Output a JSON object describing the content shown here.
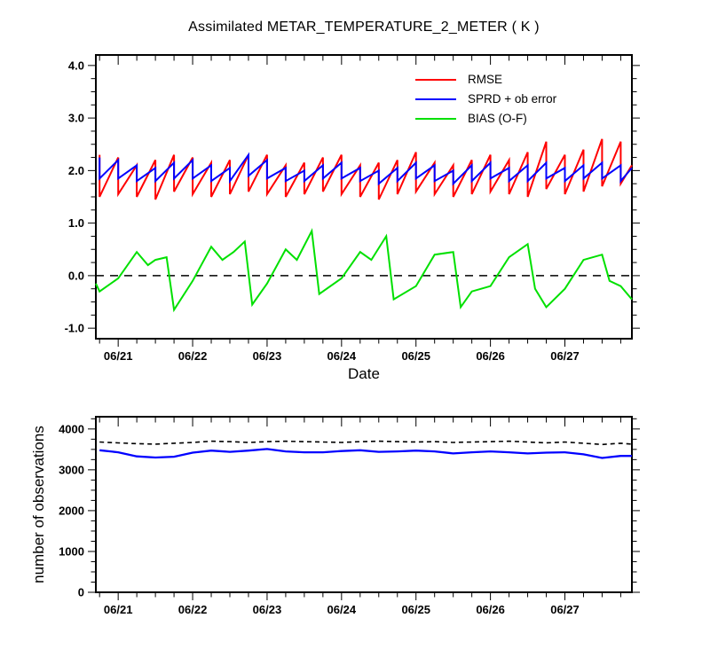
{
  "chart_data": [
    {
      "type": "line",
      "title": "Assimilated METAR_TEMPERATURE_2_METER ( K )",
      "xlabel": "Date",
      "ylabel": "",
      "xlim": [
        20.7,
        27.9
      ],
      "ylim": [
        -1.2,
        4.2
      ],
      "x_major_ticks": [
        21,
        22,
        23,
        24,
        25,
        26,
        27
      ],
      "x_tick_labels": [
        "06/21",
        "06/22",
        "06/23",
        "06/24",
        "06/25",
        "06/26",
        "06/27"
      ],
      "x_minor_step": 0.25,
      "y_major_ticks": [
        -1,
        0,
        1,
        2,
        3,
        4
      ],
      "y_tick_labels": [
        "-1.0",
        "0.0",
        "1.0",
        "2.0",
        "3.0",
        "4.0"
      ],
      "y_minor_step": 0.25,
      "grid": "off",
      "zero_line": {
        "y": 0,
        "style": "dashed",
        "color": "#000000"
      },
      "legend": {
        "position": "upper-right"
      },
      "series": [
        {
          "name": "RMSE",
          "id": "rmse",
          "color": "#ff0000",
          "style": "sawtooth",
          "width": 2,
          "times": [
            20.75,
            21,
            21.25,
            21.5,
            21.75,
            22,
            22.25,
            22.5,
            22.75,
            23,
            23.25,
            23.5,
            23.75,
            24,
            24.25,
            24.5,
            24.75,
            25,
            25.25,
            25.5,
            25.75,
            26,
            26.25,
            26.5,
            26.75,
            27,
            27.25,
            27.5,
            27.75,
            27.9
          ],
          "prior": [
            2.3,
            2.25,
            2.1,
            2.2,
            2.3,
            2.25,
            2.15,
            2.2,
            2.3,
            2.3,
            2.1,
            2.15,
            2.25,
            2.3,
            2.1,
            2.15,
            2.2,
            2.35,
            2.15,
            2.1,
            2.2,
            2.3,
            2.2,
            2.35,
            2.55,
            2.3,
            2.4,
            2.6,
            2.55,
            2.1
          ],
          "posterior": [
            1.5,
            1.55,
            1.5,
            1.45,
            1.6,
            1.55,
            1.5,
            1.55,
            1.6,
            1.55,
            1.5,
            1.55,
            1.6,
            1.55,
            1.5,
            1.45,
            1.55,
            1.6,
            1.55,
            1.5,
            1.55,
            1.6,
            1.55,
            1.5,
            1.65,
            1.55,
            1.6,
            1.7,
            1.75,
            2.1
          ]
        },
        {
          "name": "SPRD + ob error",
          "id": "sprd",
          "color": "#0000ff",
          "style": "sawtooth",
          "width": 2,
          "times": [
            20.75,
            21,
            21.25,
            21.5,
            21.75,
            22,
            22.25,
            22.5,
            22.75,
            23,
            23.25,
            23.5,
            23.75,
            24,
            24.25,
            24.5,
            24.75,
            25,
            25.25,
            25.5,
            25.75,
            26,
            26.25,
            26.5,
            26.75,
            27,
            27.25,
            27.5,
            27.75,
            27.9
          ],
          "prior": [
            2.25,
            2.2,
            2.1,
            2.05,
            2.15,
            2.2,
            2.1,
            2.05,
            2.3,
            2.2,
            2.05,
            2.0,
            2.1,
            2.15,
            2.05,
            2.0,
            2.05,
            2.15,
            2.1,
            2.0,
            2.1,
            2.15,
            2.05,
            2.1,
            2.15,
            2.05,
            2.1,
            2.15,
            2.1,
            2.05
          ],
          "posterior": [
            1.85,
            1.85,
            1.8,
            1.8,
            1.85,
            1.85,
            1.8,
            1.8,
            1.9,
            1.85,
            1.8,
            1.8,
            1.85,
            1.85,
            1.8,
            1.75,
            1.8,
            1.85,
            1.8,
            1.75,
            1.8,
            1.85,
            1.8,
            1.8,
            1.85,
            1.8,
            1.85,
            1.85,
            1.8,
            2.05
          ]
        },
        {
          "name": "BIAS (O-F)",
          "id": "bias",
          "color": "#00e000",
          "style": "line",
          "width": 2,
          "x": [
            20.7,
            20.75,
            21.0,
            21.25,
            21.4,
            21.5,
            21.65,
            21.75,
            22.0,
            22.25,
            22.4,
            22.55,
            22.7,
            22.8,
            23.0,
            23.25,
            23.4,
            23.6,
            23.7,
            24.0,
            24.25,
            24.4,
            24.6,
            24.7,
            25.0,
            25.25,
            25.5,
            25.6,
            25.75,
            26.0,
            26.25,
            26.5,
            26.6,
            26.75,
            27.0,
            27.25,
            27.5,
            27.6,
            27.75,
            27.9
          ],
          "y": [
            -0.15,
            -0.3,
            -0.05,
            0.45,
            0.2,
            0.3,
            0.35,
            -0.65,
            -0.1,
            0.55,
            0.3,
            0.45,
            0.65,
            -0.55,
            -0.15,
            0.5,
            0.3,
            0.85,
            -0.35,
            -0.05,
            0.45,
            0.3,
            0.75,
            -0.45,
            -0.2,
            0.4,
            0.45,
            -0.6,
            -0.3,
            -0.2,
            0.35,
            0.6,
            -0.25,
            -0.6,
            -0.25,
            0.3,
            0.4,
            -0.1,
            -0.2,
            -0.45
          ]
        }
      ]
    },
    {
      "type": "line",
      "title": "",
      "xlabel": "",
      "ylabel": "number of observations",
      "xlim": [
        20.7,
        27.9
      ],
      "ylim": [
        0,
        4300
      ],
      "x_major_ticks": [
        21,
        22,
        23,
        24,
        25,
        26,
        27
      ],
      "x_tick_labels": [
        "06/21",
        "06/22",
        "06/23",
        "06/24",
        "06/25",
        "06/26",
        "06/27"
      ],
      "x_minor_step": 0.25,
      "y_major_ticks": [
        0,
        1000,
        2000,
        3000,
        4000
      ],
      "y_tick_labels": [
        "0",
        "1000",
        "2000",
        "3000",
        "4000"
      ],
      "y_minor_step": 250,
      "grid": "off",
      "series": [
        {
          "name": "",
          "id": "observations-solid",
          "color": "#0000ff",
          "style": "line",
          "width": 2.3,
          "x": [
            20.75,
            21,
            21.25,
            21.5,
            21.75,
            22,
            22.25,
            22.5,
            22.75,
            23,
            23.25,
            23.5,
            23.75,
            24,
            24.25,
            24.5,
            24.75,
            25,
            25.25,
            25.5,
            25.75,
            26,
            26.25,
            26.5,
            26.75,
            27,
            27.25,
            27.5,
            27.75,
            27.9
          ],
          "y": [
            3480,
            3430,
            3330,
            3300,
            3320,
            3420,
            3470,
            3440,
            3470,
            3510,
            3450,
            3430,
            3430,
            3460,
            3480,
            3440,
            3450,
            3470,
            3450,
            3400,
            3430,
            3450,
            3430,
            3400,
            3420,
            3430,
            3380,
            3290,
            3340,
            3340
          ]
        },
        {
          "name": "",
          "id": "observations-dashed",
          "color": "#000000",
          "style": "dashed",
          "width": 1.6,
          "x": [
            20.75,
            21,
            21.25,
            21.5,
            21.75,
            22,
            22.25,
            22.5,
            22.75,
            23,
            23.25,
            23.5,
            23.75,
            24,
            24.25,
            24.5,
            24.75,
            25,
            25.25,
            25.5,
            25.75,
            26,
            26.25,
            26.5,
            26.75,
            27,
            27.25,
            27.5,
            27.75,
            27.9
          ],
          "y": [
            3680,
            3660,
            3640,
            3630,
            3650,
            3670,
            3700,
            3690,
            3670,
            3690,
            3700,
            3690,
            3680,
            3670,
            3690,
            3700,
            3690,
            3680,
            3690,
            3670,
            3680,
            3690,
            3700,
            3680,
            3660,
            3680,
            3650,
            3620,
            3650,
            3630
          ]
        }
      ]
    }
  ]
}
